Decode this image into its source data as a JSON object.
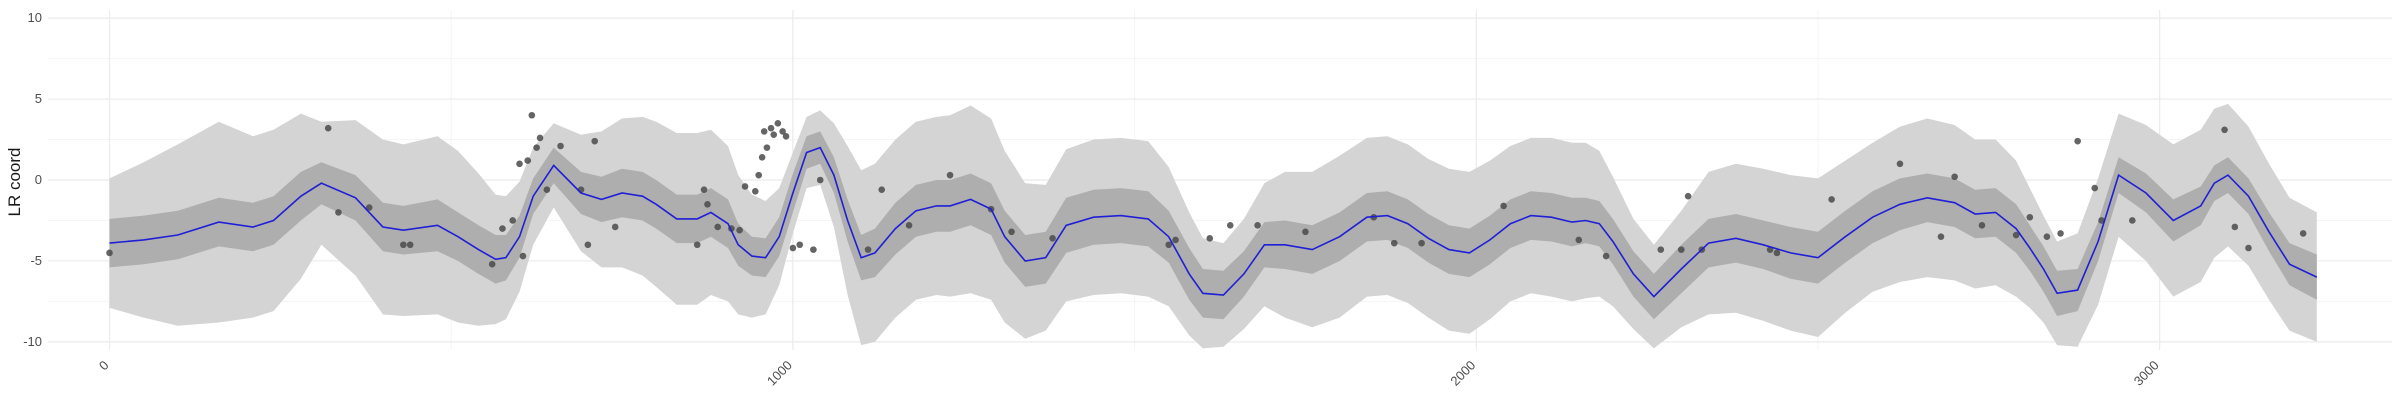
{
  "chart_data": {
    "type": "line",
    "title": "",
    "xlabel": "",
    "ylabel": "LR coord",
    "xlim": [
      -90,
      3340
    ],
    "ylim": [
      -10.5,
      10.5
    ],
    "x_ticks": [
      0,
      1000,
      2000,
      3000
    ],
    "x_tick_labels": [
      "0",
      "1000",
      "2000",
      "3000"
    ],
    "y_ticks": [
      -10,
      -5,
      0,
      5,
      10
    ],
    "y_tick_labels": [
      "-10",
      "-5",
      "0",
      "5",
      "10"
    ],
    "grid": true,
    "legend": "none",
    "colors": {
      "line": "#1f1fd6",
      "inner_band": "#aeaeae",
      "outer_band": "#d4d4d4",
      "points": "#4a4a4a",
      "grid_major": "#ebebeb",
      "grid_minor": "#f5f5f5"
    },
    "series": [
      {
        "x": [
          0,
          50,
          100,
          160,
          210,
          240,
          280,
          310,
          360,
          400,
          430,
          480,
          510,
          540,
          565,
          580,
          600,
          620,
          650,
          690,
          720,
          750,
          780,
          800,
          830,
          860,
          880,
          905,
          920,
          940,
          960,
          980,
          1000,
          1020,
          1040,
          1060,
          1080,
          1100,
          1120,
          1150,
          1180,
          1210,
          1230,
          1260,
          1290,
          1310,
          1340,
          1370,
          1400,
          1440,
          1480,
          1520,
          1550,
          1580,
          1600,
          1630,
          1660,
          1690,
          1720,
          1760,
          1800,
          1840,
          1870,
          1900,
          1930,
          1960,
          1990,
          2020,
          2050,
          2080,
          2110,
          2140,
          2160,
          2180,
          2200,
          2230,
          2260,
          2300,
          2340,
          2380,
          2420,
          2460,
          2500,
          2540,
          2580,
          2620,
          2660,
          2700,
          2730,
          2760,
          2790,
          2810,
          2830,
          2850,
          2880,
          2910,
          2940,
          2980,
          3020,
          3060,
          3080,
          3100,
          3130,
          3160,
          3190,
          3230
        ],
        "values": [
          -3.9,
          -3.7,
          -3.4,
          -2.6,
          -2.9,
          -2.5,
          -1.0,
          -0.2,
          -1.1,
          -2.9,
          -3.1,
          -2.8,
          -3.5,
          -4.3,
          -4.9,
          -4.8,
          -3.5,
          -1.0,
          0.9,
          -0.8,
          -1.2,
          -0.8,
          -1.0,
          -1.5,
          -2.4,
          -2.4,
          -2.0,
          -2.7,
          -4.0,
          -4.7,
          -4.8,
          -3.5,
          -0.8,
          1.7,
          2.0,
          0.3,
          -2.5,
          -4.8,
          -4.5,
          -3.0,
          -1.9,
          -1.6,
          -1.6,
          -1.2,
          -1.8,
          -3.5,
          -5.0,
          -4.8,
          -2.8,
          -2.3,
          -2.2,
          -2.4,
          -3.5,
          -5.8,
          -7.0,
          -7.1,
          -5.8,
          -4.0,
          -4.0,
          -4.3,
          -3.5,
          -2.3,
          -2.2,
          -2.7,
          -3.6,
          -4.3,
          -4.5,
          -3.7,
          -2.7,
          -2.2,
          -2.3,
          -2.6,
          -2.5,
          -2.7,
          -3.8,
          -5.8,
          -7.2,
          -5.5,
          -3.9,
          -3.6,
          -4.0,
          -4.5,
          -4.8,
          -3.5,
          -2.3,
          -1.5,
          -1.1,
          -1.4,
          -2.1,
          -2.0,
          -3.0,
          -4.2,
          -5.5,
          -7.0,
          -6.8,
          -3.8,
          0.3,
          -0.8,
          -2.5,
          -1.6,
          -0.2,
          0.3,
          -1.0,
          -3.2,
          -5.2,
          -6.0
        ]
      }
    ],
    "inner_band_halfwidth": [
      1.5,
      1.5,
      1.5,
      1.5,
      1.5,
      1.5,
      1.5,
      1.3,
      1.4,
      1.5,
      1.5,
      1.6,
      1.5,
      1.5,
      1.5,
      1.4,
      1.3,
      1.1,
      1.1,
      1.3,
      1.4,
      1.5,
      1.5,
      1.5,
      1.5,
      1.5,
      1.5,
      1.5,
      1.3,
      1.2,
      1.2,
      1.2,
      1.2,
      1.0,
      1.0,
      1.1,
      1.3,
      1.4,
      1.5,
      1.6,
      1.6,
      1.6,
      1.6,
      1.6,
      1.6,
      1.6,
      1.6,
      1.6,
      1.7,
      1.7,
      1.7,
      1.7,
      1.6,
      1.6,
      1.5,
      1.5,
      1.4,
      1.4,
      1.5,
      1.5,
      1.5,
      1.5,
      1.5,
      1.5,
      1.5,
      1.5,
      1.5,
      1.5,
      1.5,
      1.5,
      1.5,
      1.5,
      1.4,
      1.4,
      1.4,
      1.4,
      1.4,
      1.5,
      1.5,
      1.5,
      1.5,
      1.6,
      1.6,
      1.6,
      1.6,
      1.6,
      1.5,
      1.5,
      1.5,
      1.5,
      1.5,
      1.4,
      1.4,
      1.4,
      1.3,
      1.2,
      1.1,
      1.2,
      1.3,
      1.2,
      1.1,
      1.1,
      1.1,
      1.2,
      1.3,
      1.4
    ],
    "outer_band_halfwidth": [
      4.0,
      4.8,
      5.6,
      6.2,
      5.6,
      5.6,
      5.1,
      3.8,
      4.8,
      5.4,
      5.3,
      5.5,
      5.3,
      4.7,
      4.0,
      3.8,
      3.4,
      3.0,
      2.6,
      3.6,
      4.2,
      4.6,
      4.9,
      5.1,
      5.3,
      5.3,
      5.1,
      4.8,
      4.3,
      3.8,
      3.5,
      3.0,
      2.5,
      2.2,
      2.3,
      3.2,
      4.6,
      5.4,
      5.5,
      5.5,
      5.5,
      5.5,
      5.6,
      5.8,
      5.6,
      5.3,
      4.8,
      4.5,
      4.7,
      4.8,
      4.8,
      4.8,
      4.3,
      3.8,
      3.4,
      3.2,
      3.4,
      3.8,
      4.5,
      4.8,
      5.0,
      4.9,
      4.9,
      4.9,
      4.9,
      5.0,
      5.0,
      4.9,
      4.8,
      4.8,
      4.9,
      4.9,
      4.8,
      4.5,
      4.0,
      3.4,
      3.2,
      3.6,
      4.4,
      4.6,
      4.7,
      4.8,
      4.9,
      4.7,
      4.6,
      4.8,
      4.9,
      4.8,
      4.6,
      4.5,
      4.2,
      3.7,
      3.3,
      3.2,
      3.5,
      3.9,
      3.8,
      4.2,
      4.7,
      4.7,
      4.6,
      4.4,
      4.3,
      4.2,
      4.1,
      4.0
    ],
    "points": {
      "x": [
        0,
        320,
        335,
        380,
        430,
        440,
        560,
        575,
        590,
        600,
        605,
        612,
        618,
        625,
        630,
        640,
        660,
        690,
        700,
        710,
        740,
        860,
        870,
        875,
        890,
        910,
        922,
        930,
        945,
        950,
        955,
        958,
        962,
        968,
        972,
        978,
        985,
        990,
        1000,
        1010,
        1030,
        1040,
        1110,
        1130,
        1170,
        1230,
        1290,
        1320,
        1380,
        1550,
        1560,
        1610,
        1640,
        1680,
        1750,
        1850,
        1880,
        1920,
        2040,
        2150,
        2190,
        2270,
        2300,
        2310,
        2330,
        2430,
        2440,
        2520,
        2620,
        2680,
        2700,
        2740,
        2790,
        2810,
        2835,
        2855,
        2880,
        2905,
        2915,
        2960,
        3095,
        3110,
        3130,
        3210
      ],
      "y": [
        -4.5,
        3.2,
        -2.0,
        -1.7,
        -4.0,
        -4.0,
        -5.2,
        -3.0,
        -2.5,
        1.0,
        -4.7,
        1.2,
        4.0,
        2.0,
        2.6,
        -0.6,
        2.1,
        -0.6,
        -4.0,
        2.4,
        -2.9,
        -4.0,
        -0.6,
        -1.5,
        -2.9,
        -3.0,
        -3.1,
        -0.4,
        -0.7,
        0.3,
        1.4,
        3.0,
        2.0,
        3.2,
        2.8,
        3.5,
        3.0,
        2.7,
        -4.2,
        -4.0,
        -4.3,
        0.0,
        -4.3,
        -0.6,
        -2.8,
        0.3,
        -1.8,
        -3.2,
        -3.6,
        -4.0,
        -3.7,
        -3.6,
        -2.8,
        -2.8,
        -3.2,
        -2.3,
        -3.9,
        -3.9,
        -1.6,
        -3.7,
        -4.7,
        -4.3,
        -4.3,
        -1.0,
        -4.3,
        -4.3,
        -4.5,
        -1.2,
        1.0,
        -3.5,
        0.2,
        -2.8,
        -3.4,
        -2.3,
        -3.5,
        -3.3,
        2.4,
        -0.5,
        -2.5,
        -2.5,
        3.1,
        -2.9,
        -4.2,
        -3.3
      ]
    }
  }
}
